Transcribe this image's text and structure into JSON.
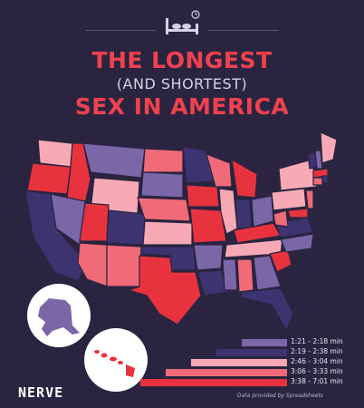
{
  "title": {
    "line1": "THE LONGEST",
    "line2": "(AND SHORTEST)",
    "line3": "SEX IN AMERICA"
  },
  "icons": {
    "header": "bed-icon",
    "clock": "clock-icon"
  },
  "colors": {
    "background": "#2a2440",
    "cat1": "#7b66a8",
    "cat2": "#3d3370",
    "cat3": "#f7aab6",
    "cat4": "#f06a78",
    "cat5": "#e8333f"
  },
  "legend": [
    {
      "label": "1:21 - 2:18 min",
      "color": "#7b66a8",
      "level": 1
    },
    {
      "label": "2:19 - 2:38 min",
      "color": "#3d3370",
      "level": 2
    },
    {
      "label": "2:46 - 3:04 min",
      "color": "#f7aab6",
      "level": 3
    },
    {
      "label": "3:06 - 3:33 min",
      "color": "#f06a78",
      "level": 4
    },
    {
      "label": "3:38 - 7:01 min",
      "color": "#e8333f",
      "level": 5
    }
  ],
  "brand": "NERVE",
  "credit": "Data provided by Spreadsheets"
}
